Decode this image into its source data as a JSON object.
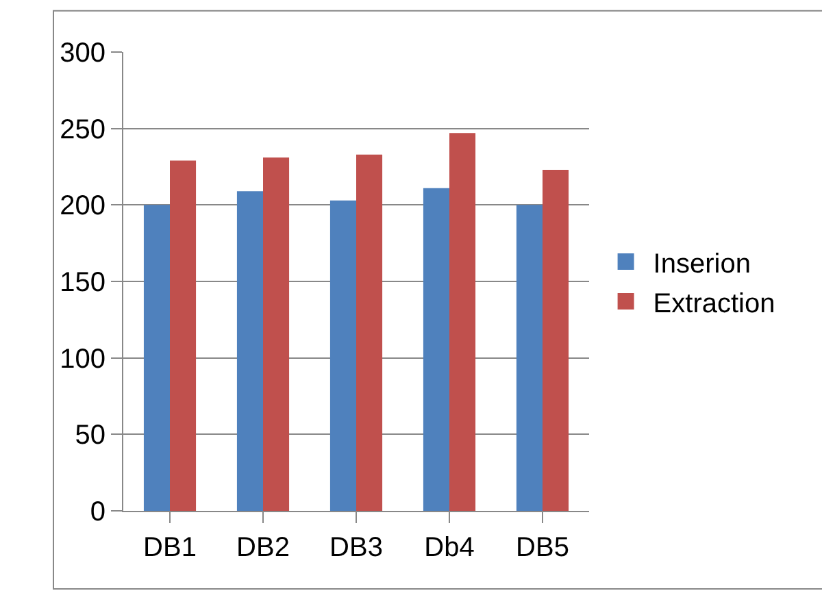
{
  "chart_data": {
    "type": "bar",
    "categories": [
      "DB1",
      "DB2",
      "DB3",
      "Db4",
      "DB5"
    ],
    "series": [
      {
        "name": "Inserion",
        "color": "#4f81bd",
        "values": [
          200,
          209,
          203,
          211,
          200
        ]
      },
      {
        "name": "Extraction",
        "color": "#c0504d",
        "values": [
          229,
          231,
          233,
          247,
          223
        ]
      }
    ],
    "ylim": [
      0,
      300
    ],
    "yticks": [
      0,
      50,
      100,
      150,
      200,
      250,
      300
    ],
    "grid": "y",
    "legend": "right"
  }
}
